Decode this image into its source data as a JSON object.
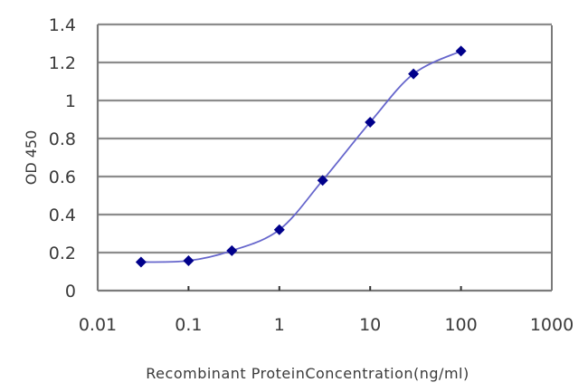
{
  "chart_data": {
    "type": "line",
    "title": "",
    "xlabel": "Recombinant ProteinConcentration(ng/ml)",
    "ylabel": "OD 450",
    "x_scale": "log",
    "xlim": [
      0.01,
      1000
    ],
    "ylim": [
      0,
      1.4
    ],
    "x_ticks": [
      "0.01",
      "0.1",
      "1",
      "10",
      "100",
      "1000"
    ],
    "y_ticks": [
      "0",
      "0.2",
      "0.4",
      "0.6",
      "0.8",
      "1",
      "1.2",
      "1.4"
    ],
    "grid": {
      "horizontal": true,
      "vertical": false
    },
    "legend": null,
    "series": [
      {
        "name": "OD 450",
        "x": [
          0.03,
          0.1,
          0.3,
          1,
          3,
          10,
          30,
          100
        ],
        "values": [
          0.15,
          0.157,
          0.21,
          0.32,
          0.58,
          0.886,
          1.14,
          1.26
        ],
        "marker": "diamond",
        "marker_color": "#00008B",
        "line_color": "#6666CC"
      }
    ]
  },
  "colors": {
    "gridline": "#8c8c8c",
    "axis": "#7a7a7a",
    "background": "#ffffff"
  }
}
